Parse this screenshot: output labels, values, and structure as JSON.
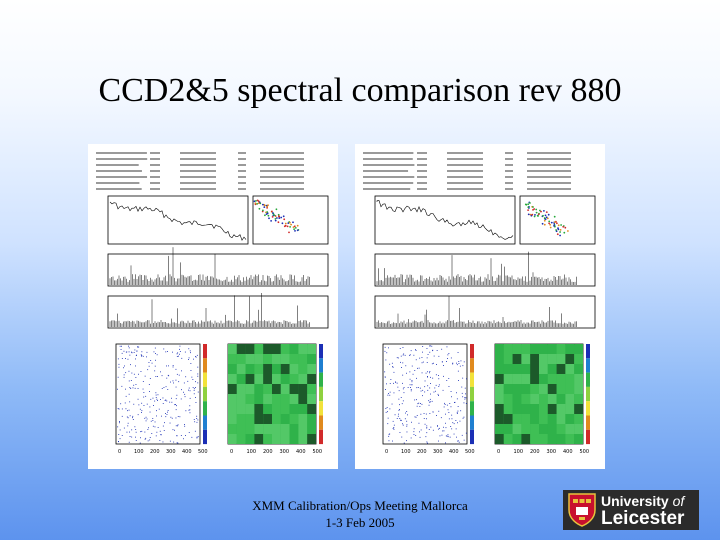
{
  "slide": {
    "title": "CCD2&5 spectral comparison rev 880",
    "footer_line1": "XMM Calibration/Ops Meeting Mallorca",
    "footer_line2": "1-3 Feb 2005"
  },
  "logo": {
    "line1_a": "University",
    "line1_b": "of",
    "line2": "Leicester",
    "colors": {
      "background": "#2b2b2b",
      "shield_red": "#c8102e",
      "shield_gold": "#e8c23c"
    }
  },
  "panels": [
    {
      "id": "left",
      "chip": "CCD2",
      "ticks": [
        "0",
        "100",
        "200",
        "300",
        "400",
        "500"
      ]
    },
    {
      "id": "right",
      "chip": "CCD5",
      "ticks": [
        "0",
        "100",
        "200",
        "300",
        "400",
        "500"
      ]
    }
  ],
  "colors": {
    "heatmap_green": "#2fb24a",
    "heatmap_dark": "#1c5a2a",
    "scatter_blue": "#1b2fb5"
  }
}
